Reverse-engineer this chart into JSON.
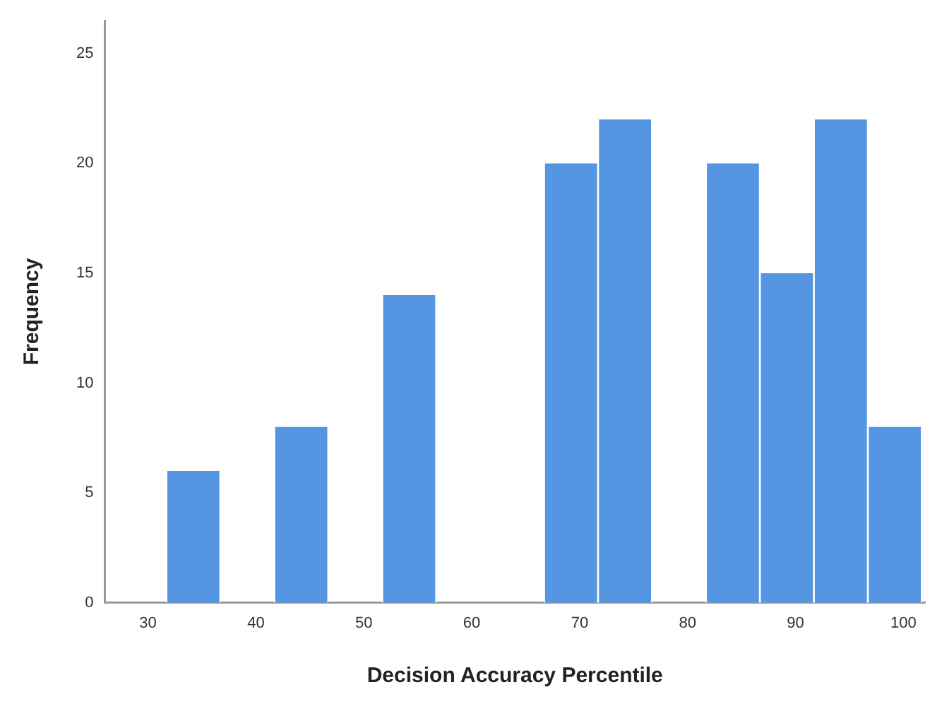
{
  "chart_data": {
    "type": "histogram",
    "xlabel": "Decision Accuracy Percentile",
    "ylabel": "Frequency",
    "bins": [
      31.7,
      36.7,
      41.7,
      46.7,
      51.7,
      56.7,
      61.7,
      66.7,
      71.7,
      76.7,
      81.7,
      86.7,
      91.7,
      96.7,
      101.7
    ],
    "values": [
      6,
      0,
      8,
      0,
      14,
      0,
      0,
      20,
      22,
      0,
      20,
      15,
      22,
      8
    ],
    "color": "#5596e3",
    "xlim": [
      26,
      102
    ],
    "xticks": [
      30,
      40,
      50,
      60,
      70,
      80,
      90,
      100
    ],
    "ylim": [
      0,
      26.5
    ],
    "yticks": [
      0,
      5,
      10,
      15,
      20,
      25
    ],
    "grid": false,
    "legend": false
  }
}
